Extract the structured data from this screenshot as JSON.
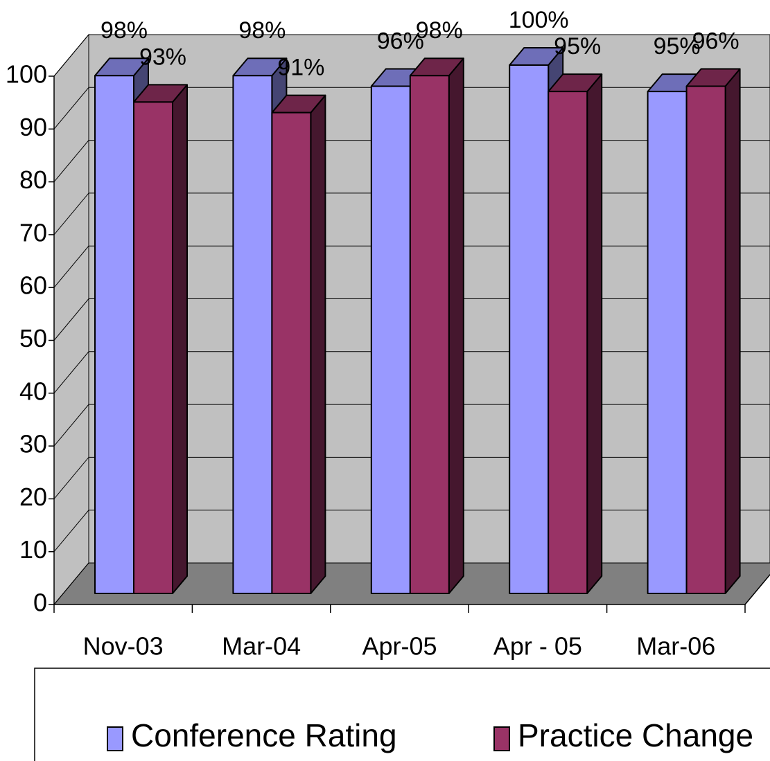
{
  "chart_data": {
    "type": "bar",
    "categories": [
      "Nov-03",
      "Mar-04",
      "Apr-05",
      "Apr - 05",
      "Mar-06"
    ],
    "series": [
      {
        "name": "Conference Rating",
        "color": "#9999ff",
        "values": [
          98,
          98,
          96,
          100,
          95
        ],
        "value_labels": [
          "98%",
          "98%",
          "96%",
          "100%",
          "95%"
        ]
      },
      {
        "name": "Practice Change",
        "color": "#993366",
        "values": [
          93,
          91,
          98,
          95,
          96
        ],
        "value_labels": [
          "93%",
          "91%",
          "98%",
          "95%",
          "96%"
        ]
      }
    ],
    "ylim": [
      0,
      100
    ],
    "yticks": [
      0,
      10,
      20,
      30,
      40,
      50,
      60,
      70,
      80,
      90,
      100
    ],
    "grid": true
  }
}
